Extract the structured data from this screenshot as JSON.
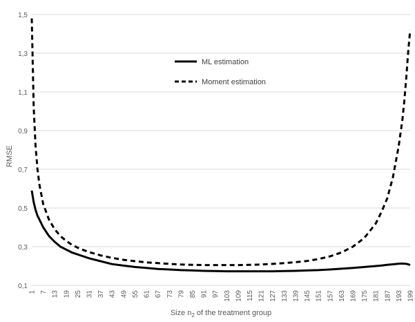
{
  "chart_data": {
    "type": "line",
    "xlabel_prefix": "Size n",
    "xlabel_subscript": "2",
    "xlabel_suffix": " of the treatment group",
    "ylabel": "RMSE",
    "ylim": [
      0.1,
      1.5
    ],
    "yticks": [
      "0,1",
      "0,3",
      "0,5",
      "0,7",
      "0,9",
      "1,1",
      "1,3",
      "1,5"
    ],
    "ytick_values": [
      0.1,
      0.3,
      0.5,
      0.7,
      0.9,
      1.1,
      1.3,
      1.5
    ],
    "grid": "horizontal",
    "legend_position": "top-center",
    "x": [
      1,
      2,
      3,
      4,
      5,
      7,
      10,
      13,
      16,
      19,
      22,
      25,
      28,
      31,
      37,
      43,
      49,
      55,
      61,
      67,
      73,
      79,
      85,
      91,
      97,
      103,
      109,
      115,
      121,
      127,
      133,
      139,
      145,
      151,
      157,
      163,
      169,
      175,
      181,
      184,
      187,
      190,
      193,
      195,
      196,
      197,
      198,
      199
    ],
    "xticks": [
      1,
      7,
      13,
      19,
      25,
      31,
      37,
      43,
      49,
      55,
      61,
      67,
      73,
      79,
      85,
      91,
      97,
      103,
      109,
      115,
      121,
      127,
      133,
      139,
      145,
      151,
      157,
      163,
      169,
      175,
      181,
      187,
      193,
      199
    ],
    "series": [
      {
        "name": "ML estimation",
        "style": "solid",
        "color": "#000000",
        "values": [
          0.59,
          0.53,
          0.49,
          0.46,
          0.44,
          0.4,
          0.355,
          0.325,
          0.3,
          0.285,
          0.27,
          0.26,
          0.25,
          0.24,
          0.225,
          0.21,
          0.202,
          0.195,
          0.19,
          0.185,
          0.182,
          0.179,
          0.177,
          0.175,
          0.174,
          0.173,
          0.173,
          0.173,
          0.173,
          0.173,
          0.174,
          0.175,
          0.177,
          0.179,
          0.182,
          0.186,
          0.19,
          0.195,
          0.2,
          0.203,
          0.206,
          0.209,
          0.212,
          0.213,
          0.212,
          0.211,
          0.209,
          0.205
        ]
      },
      {
        "name": "Moment estimation",
        "style": "dashed",
        "color": "#000000",
        "values": [
          1.48,
          1.02,
          0.82,
          0.7,
          0.62,
          0.52,
          0.44,
          0.39,
          0.355,
          0.33,
          0.31,
          0.295,
          0.283,
          0.272,
          0.255,
          0.242,
          0.232,
          0.225,
          0.219,
          0.215,
          0.211,
          0.208,
          0.206,
          0.205,
          0.205,
          0.205,
          0.205,
          0.206,
          0.208,
          0.211,
          0.215,
          0.22,
          0.226,
          0.236,
          0.25,
          0.27,
          0.3,
          0.345,
          0.42,
          0.48,
          0.55,
          0.66,
          0.82,
          0.96,
          1.06,
          1.18,
          1.31,
          1.42
        ]
      }
    ]
  }
}
